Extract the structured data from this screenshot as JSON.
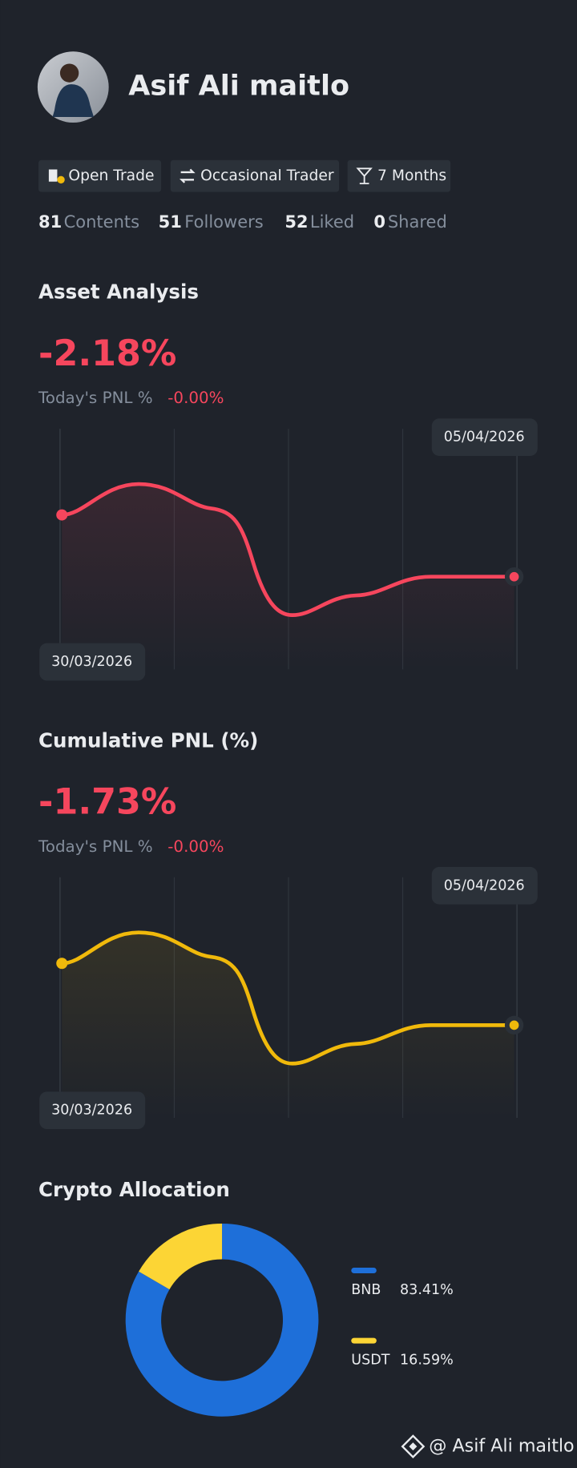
{
  "profile": {
    "name": "Asif Ali maitlo",
    "tags": [
      "Open Trade",
      "Occasional Trader",
      "7 Months"
    ],
    "stats": [
      {
        "value": 81,
        "label": "Contents"
      },
      {
        "value": 51,
        "label": "Followers"
      },
      {
        "value": 52,
        "label": "Liked"
      },
      {
        "value": 0,
        "label": "Shared"
      }
    ]
  },
  "asset_analysis": {
    "title": "Asset Analysis",
    "value": "-2.18%",
    "today_label": "Today's PNL %",
    "today_value": "-0.00%",
    "start_date": "30/03/2026",
    "end_date": "05/04/2026"
  },
  "cumulative_pnl": {
    "title": "Cumulative PNL (%)",
    "value": "-1.73%",
    "today_label": "Today's PNL %",
    "today_value": "-0.00%",
    "start_date": "30/03/2026",
    "end_date": "05/04/2026"
  },
  "chart_data": {
    "type": "donut",
    "title": "Crypto Allocation",
    "categories": [
      "BNB",
      "USDT"
    ],
    "values": [
      83.41,
      16.59
    ],
    "value_labels": [
      "83.41%",
      "16.59%"
    ],
    "colors": [
      "#1e6fd9",
      "#fcd535"
    ]
  },
  "footer": "@ Asif Ali maitlo"
}
